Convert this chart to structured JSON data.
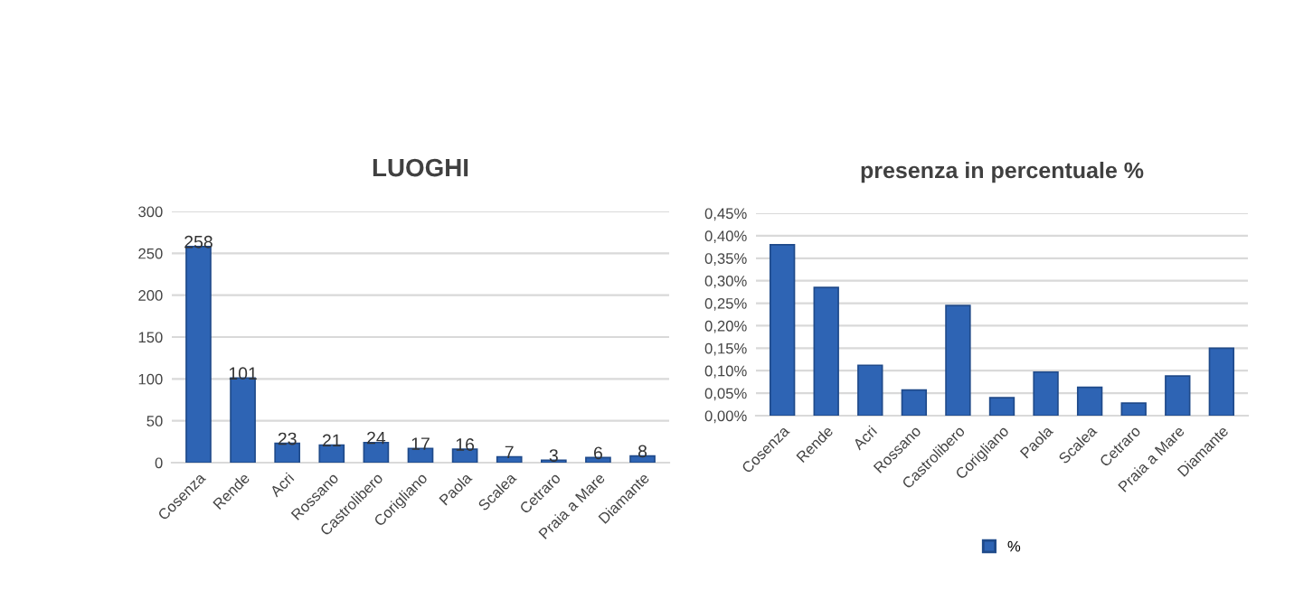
{
  "chart_data": [
    {
      "type": "bar",
      "title": "LUOGHI",
      "categories": [
        "Cosenza",
        "Rende",
        "Acri",
        "Rossano",
        "Castrolibero",
        "Corigliano",
        "Paola",
        "Scalea",
        "Cetraro",
        "Praia a Mare",
        "Diamante"
      ],
      "series": [
        {
          "color": "#2e64b4",
          "values": [
            258,
            101,
            23,
            21,
            24,
            17,
            16,
            7,
            3,
            6,
            8
          ]
        }
      ],
      "ylim": [
        0,
        300
      ],
      "yticks": [
        0,
        50,
        100,
        150,
        200,
        250,
        300
      ],
      "grid": "y",
      "data_labels": true
    },
    {
      "type": "bar",
      "title": "presenza in percentuale %",
      "categories": [
        "Cosenza",
        "Rende",
        "Acri",
        "Rossano",
        "Castrolibero",
        "Corigliano",
        "Paola",
        "Scalea",
        "Cetraro",
        "Praia a Mare",
        "Diamante"
      ],
      "series": [
        {
          "name": "%",
          "color": "#2e64b4",
          "values": [
            0.38,
            0.285,
            0.112,
            0.057,
            0.245,
            0.04,
            0.097,
            0.063,
            0.028,
            0.088,
            0.15
          ]
        }
      ],
      "ylim": [
        0,
        0.45
      ],
      "yticks": [
        {
          "value": 0,
          "label": "0,00%"
        },
        {
          "value": 0.05,
          "label": "0,05%"
        },
        {
          "value": 0.1,
          "label": "0,10%"
        },
        {
          "value": 0.15,
          "label": "0,15%"
        },
        {
          "value": 0.2,
          "label": "0,20%"
        },
        {
          "value": 0.25,
          "label": "0,25%"
        },
        {
          "value": 0.3,
          "label": "0,30%"
        },
        {
          "value": 0.35,
          "label": "0,35%"
        },
        {
          "value": 0.4,
          "label": "0,40%"
        },
        {
          "value": 0.45,
          "label": "0,45%"
        }
      ],
      "grid": "y",
      "legend": "bottom"
    }
  ]
}
